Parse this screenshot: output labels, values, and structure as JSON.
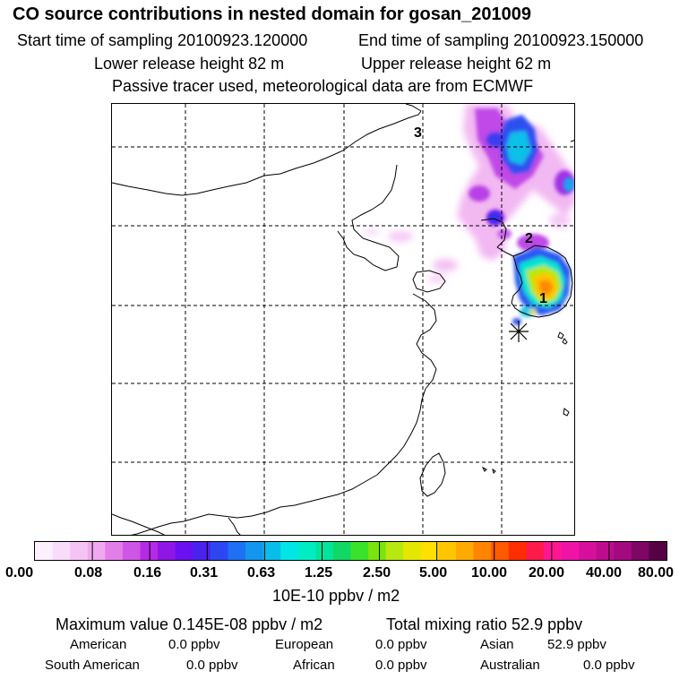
{
  "header": {
    "title": "CO  source contributions in nested domain for gosan_201009",
    "start_label": "Start time of sampling 20100923.120000",
    "end_label": "End time of sampling 20100923.150000",
    "lower_height": "Lower release height   82 m",
    "upper_height": "Upper release height   62 m",
    "tracer_note": "Passive tracer used, meteorological data are from ECMWF"
  },
  "map": {
    "labels": [
      "1",
      "2",
      "3"
    ],
    "station_marker": "station-star"
  },
  "colorbar": {
    "colors": [
      "#fdf0fd",
      "#f9dcf9",
      "#f5c4f5",
      "#f0a8f0",
      "#e27ee8",
      "#cf55e6",
      "#b52ae6",
      "#8e16e6",
      "#6b10f0",
      "#4a22ee",
      "#2e46f2",
      "#1e70f5",
      "#1296f0",
      "#08bde9",
      "#00e6e6",
      "#00ecc4",
      "#00e49a",
      "#10d864",
      "#3ae22c",
      "#7ae40c",
      "#b8e810",
      "#e4e800",
      "#ffe000",
      "#ffc600",
      "#ffaa00",
      "#ff8400",
      "#ff5a00",
      "#ff2e00",
      "#ff1a4a",
      "#ff1690",
      "#f014a6",
      "#d6109c",
      "#be0c8e",
      "#a40a80",
      "#7e0664",
      "#560046"
    ],
    "tick_labels": [
      "0.00",
      "0.08",
      "0.16",
      "0.31",
      "0.63",
      "1.25",
      "2.50",
      "5.00",
      "10.00",
      "20.00",
      "40.00",
      "80.00"
    ],
    "unit_label": "10E-10 ppbv / m2"
  },
  "summary": {
    "max_value": "Maximum value  0.145E-08 ppbv / m2",
    "total_mixing": "Total mixing ratio       52.9 ppbv",
    "regions": [
      {
        "name": "American",
        "value": "0.0 ppbv"
      },
      {
        "name": "European",
        "value": "0.0 ppbv"
      },
      {
        "name": "Asian",
        "value": "52.9 ppbv"
      },
      {
        "name": "South American",
        "value": "0.0 ppbv"
      },
      {
        "name": "African",
        "value": "0.0 ppbv"
      },
      {
        "name": "Australian",
        "value": "0.0 ppbv"
      }
    ]
  }
}
